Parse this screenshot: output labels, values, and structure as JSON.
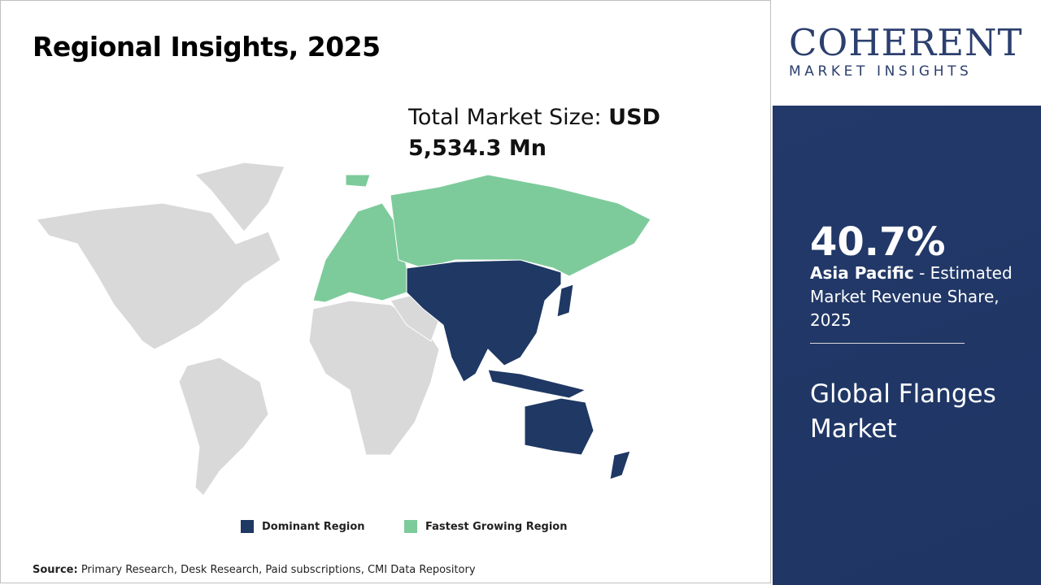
{
  "header": {
    "title": "Regional Insights, 2025"
  },
  "market_size": {
    "label": "Total Market Size: ",
    "value": "USD 5,534.3 Mn"
  },
  "logo": {
    "name": "COHERENT",
    "tagline": "MARKET INSIGHTS"
  },
  "highlight": {
    "share": "40.7%",
    "region": "Asia Pacific",
    "description": " - Estimated Market Revenue Share, 2025"
  },
  "market_name": "Global Flanges Market",
  "legend": {
    "dominant": "Dominant Region",
    "fastest": "Fastest Growing Region"
  },
  "source": {
    "label": "Source:",
    "text": " Primary Research, Desk Research, Paid subscriptions, CMI Data Repository"
  }
}
